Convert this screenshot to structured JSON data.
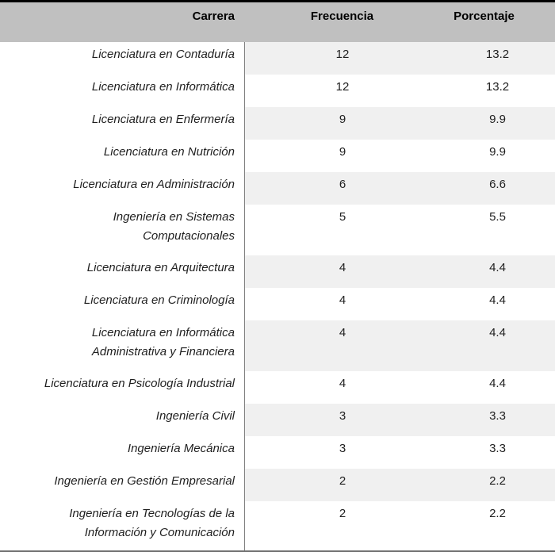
{
  "table": {
    "columns": [
      "Carrera",
      "Frecuencia",
      "Porcentaje"
    ],
    "rows": [
      {
        "carrera": "Licenciatura en Contaduría",
        "frecuencia": "12",
        "porcentaje": "13.2"
      },
      {
        "carrera": "Licenciatura en Informática",
        "frecuencia": "12",
        "porcentaje": "13.2"
      },
      {
        "carrera": "Licenciatura en Enfermería",
        "frecuencia": "9",
        "porcentaje": "9.9"
      },
      {
        "carrera": "Licenciatura en Nutrición",
        "frecuencia": "9",
        "porcentaje": "9.9"
      },
      {
        "carrera": "Licenciatura en Administración",
        "frecuencia": "6",
        "porcentaje": "6.6"
      },
      {
        "carrera": "Ingeniería en Sistemas\nComputacionales",
        "frecuencia": "5",
        "porcentaje": "5.5"
      },
      {
        "carrera": "Licenciatura en Arquitectura",
        "frecuencia": "4",
        "porcentaje": "4.4"
      },
      {
        "carrera": "Licenciatura en Criminología",
        "frecuencia": "4",
        "porcentaje": "4.4"
      },
      {
        "carrera": "Licenciatura en Informática\nAdministrativa y Financiera",
        "frecuencia": "4",
        "porcentaje": "4.4"
      },
      {
        "carrera": "Licenciatura en Psicología Industrial",
        "frecuencia": "4",
        "porcentaje": "4.4"
      },
      {
        "carrera": "Ingeniería Civil",
        "frecuencia": "3",
        "porcentaje": "3.3"
      },
      {
        "carrera": "Ingeniería Mecánica",
        "frecuencia": "3",
        "porcentaje": "3.3"
      },
      {
        "carrera": "Ingeniería en Gestión Empresarial",
        "frecuencia": "2",
        "porcentaje": "2.2"
      },
      {
        "carrera": "Ingeniería en Tecnologías de la\nInformación y Comunicación",
        "frecuencia": "2",
        "porcentaje": "2.2"
      }
    ]
  },
  "chart_data": {
    "type": "table",
    "title": "",
    "columns": [
      "Carrera",
      "Frecuencia",
      "Porcentaje"
    ],
    "rows": [
      [
        "Licenciatura en Contaduría",
        12,
        13.2
      ],
      [
        "Licenciatura en Informática",
        12,
        13.2
      ],
      [
        "Licenciatura en Enfermería",
        9,
        9.9
      ],
      [
        "Licenciatura en Nutrición",
        9,
        9.9
      ],
      [
        "Licenciatura en Administración",
        6,
        6.6
      ],
      [
        "Ingeniería en Sistemas Computacionales",
        5,
        5.5
      ],
      [
        "Licenciatura en Arquitectura",
        4,
        4.4
      ],
      [
        "Licenciatura en Criminología",
        4,
        4.4
      ],
      [
        "Licenciatura en Informática Administrativa y Financiera",
        4,
        4.4
      ],
      [
        "Licenciatura en Psicología Industrial",
        4,
        4.4
      ],
      [
        "Ingeniería Civil",
        3,
        3.3
      ],
      [
        "Ingeniería Mecánica",
        3,
        3.3
      ],
      [
        "Ingeniería en Gestión Empresarial",
        2,
        2.2
      ],
      [
        "Ingeniería en Tecnologías de la Información y Comunicación",
        2,
        2.2
      ]
    ]
  },
  "colors": {
    "header_bg": "#c0c0c0",
    "stripe": "#f0f0f0",
    "divider": "#808080",
    "top_border": "#000000",
    "bottom_border": "#6f6f6f",
    "text": "#1f1f1f"
  }
}
